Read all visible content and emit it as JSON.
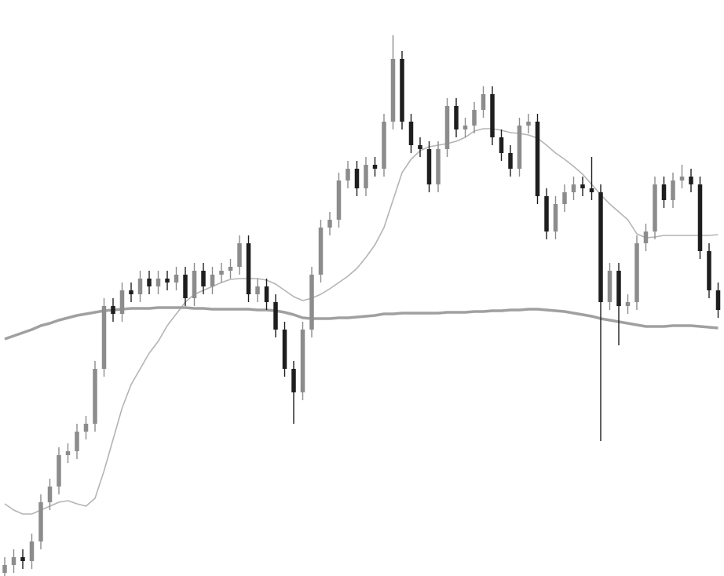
{
  "chart_data": {
    "type": "candlestick",
    "ylim": [
      0,
      734
    ],
    "up_color": "#8c8c8c",
    "down_color": "#1e1e1e",
    "open": [
      4,
      14,
      24,
      19,
      44,
      94,
      114,
      154,
      159,
      184,
      194,
      264,
      344,
      334,
      364,
      359,
      379,
      369,
      379,
      374,
      384,
      354,
      389,
      369,
      384,
      389,
      394,
      424,
      359,
      369,
      349,
      314,
      264,
      234,
      314,
      384,
      444,
      454,
      504,
      519,
      494,
      524,
      519,
      579,
      659,
      579,
      549,
      544,
      499,
      544,
      599,
      569,
      574,
      594,
      614,
      559,
      539,
      519,
      574,
      579,
      484,
      439,
      474,
      489,
      499,
      494,
      489,
      349,
      389,
      344,
      349,
      424,
      439,
      499,
      479,
      504,
      509,
      499,
      414,
      364
    ],
    "high": [
      24,
      34,
      34,
      54,
      104,
      124,
      164,
      169,
      194,
      204,
      274,
      354,
      354,
      374,
      374,
      389,
      389,
      389,
      389,
      394,
      394,
      399,
      399,
      394,
      399,
      404,
      434,
      434,
      379,
      379,
      359,
      324,
      274,
      324,
      394,
      454,
      464,
      514,
      529,
      529,
      534,
      534,
      589,
      689,
      669,
      589,
      559,
      554,
      554,
      609,
      609,
      584,
      604,
      624,
      624,
      569,
      549,
      584,
      589,
      589,
      494,
      484,
      499,
      509,
      509,
      534,
      499,
      399,
      399,
      359,
      434,
      449,
      509,
      509,
      514,
      524,
      519,
      509,
      424,
      374
    ],
    "low": [
      0,
      4,
      9,
      9,
      34,
      84,
      104,
      144,
      149,
      174,
      184,
      254,
      324,
      324,
      349,
      349,
      359,
      359,
      364,
      364,
      344,
      344,
      359,
      359,
      374,
      379,
      384,
      349,
      349,
      339,
      304,
      254,
      194,
      224,
      304,
      374,
      434,
      444,
      494,
      484,
      484,
      509,
      509,
      569,
      569,
      539,
      534,
      489,
      489,
      534,
      559,
      559,
      564,
      584,
      549,
      529,
      509,
      509,
      564,
      474,
      429,
      429,
      464,
      479,
      484,
      479,
      172,
      339,
      294,
      334,
      339,
      414,
      429,
      469,
      469,
      494,
      489,
      404,
      354,
      329
    ],
    "close": [
      14,
      24,
      19,
      44,
      94,
      114,
      154,
      159,
      184,
      194,
      264,
      344,
      334,
      364,
      359,
      379,
      369,
      379,
      374,
      384,
      354,
      389,
      369,
      384,
      389,
      394,
      424,
      359,
      369,
      349,
      314,
      264,
      234,
      314,
      384,
      444,
      454,
      504,
      519,
      494,
      524,
      519,
      579,
      659,
      579,
      549,
      544,
      499,
      544,
      599,
      569,
      574,
      594,
      614,
      559,
      539,
      519,
      574,
      579,
      484,
      439,
      474,
      489,
      499,
      494,
      489,
      349,
      389,
      344,
      349,
      424,
      439,
      499,
      479,
      504,
      509,
      499,
      414,
      364,
      339
    ],
    "overlays": [
      {
        "color": "#b4b4b4",
        "values": [
          92,
          84,
          79,
          79,
          84,
          89,
          94,
          96,
          92,
          89,
          99,
          134,
          174,
          214,
          244,
          264,
          284,
          299,
          319,
          334,
          349,
          359,
          364,
          369,
          374,
          378,
          379,
          379,
          379,
          377,
          372,
          364,
          356,
          351,
          354,
          359,
          366,
          374,
          382,
          392,
          406,
          422,
          444,
          479,
          514,
          531,
          542,
          547,
          549,
          551,
          554,
          559,
          567,
          570,
          570,
          568,
          565,
          564,
          562,
          558,
          549,
          539,
          531,
          522,
          512,
          499,
          486,
          474,
          464,
          454,
          436,
          431,
          432,
          434,
          434,
          434,
          434,
          434,
          434,
          435
        ]
      },
      {
        "color": "#a0a0a0",
        "values": [
          302,
          306,
          310,
          314,
          319,
          322,
          326,
          329,
          332,
          334,
          336,
          338,
          339,
          340,
          341,
          341,
          341,
          342,
          342,
          342,
          342,
          341,
          341,
          340,
          340,
          340,
          340,
          340,
          339,
          339,
          338,
          336,
          333,
          329,
          328,
          328,
          328,
          329,
          329,
          330,
          331,
          332,
          334,
          334,
          335,
          335,
          335,
          335,
          335,
          336,
          336,
          336,
          337,
          337,
          338,
          338,
          339,
          339,
          340,
          340,
          339,
          338,
          337,
          335,
          333,
          331,
          328,
          326,
          324,
          322,
          320,
          318,
          318,
          318,
          319,
          319,
          319,
          318,
          317,
          316
        ]
      }
    ]
  }
}
